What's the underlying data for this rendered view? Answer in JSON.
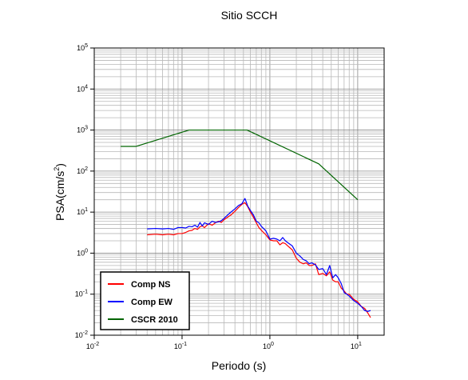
{
  "chart_data": {
    "type": "line",
    "title": "Sitio SCCH",
    "xlabel": "Periodo (s)",
    "ylabel_main": "PSA(cm/s",
    "ylabel_sup": "2",
    "ylabel_close": ")",
    "x_scale": "log",
    "y_scale": "log",
    "xlim": [
      0.01,
      20
    ],
    "ylim": [
      0.01,
      100000
    ],
    "grid": true,
    "legend_position": "bottom-left",
    "x_ticks": [
      {
        "base": "10",
        "exp": "-2",
        "value": 0.01
      },
      {
        "base": "10",
        "exp": "-1",
        "value": 0.1
      },
      {
        "base": "10",
        "exp": "0",
        "value": 1
      },
      {
        "base": "10",
        "exp": "1",
        "value": 10
      }
    ],
    "y_ticks": [
      {
        "base": "10",
        "exp": "-2",
        "value": 0.01
      },
      {
        "base": "10",
        "exp": "-1",
        "value": 0.1
      },
      {
        "base": "10",
        "exp": "0",
        "value": 1
      },
      {
        "base": "10",
        "exp": "1",
        "value": 10
      },
      {
        "base": "10",
        "exp": "2",
        "value": 100
      },
      {
        "base": "10",
        "exp": "3",
        "value": 1000
      },
      {
        "base": "10",
        "exp": "4",
        "value": 10000
      },
      {
        "base": "10",
        "exp": "5",
        "value": 100000
      }
    ],
    "series": [
      {
        "name": "Comp NS",
        "color": "#ff0000",
        "x": [
          0.04,
          0.05,
          0.06,
          0.07,
          0.08,
          0.09,
          0.1,
          0.11,
          0.12,
          0.13,
          0.14,
          0.15,
          0.16,
          0.17,
          0.18,
          0.2,
          0.22,
          0.24,
          0.26,
          0.28,
          0.3,
          0.33,
          0.36,
          0.4,
          0.44,
          0.48,
          0.52,
          0.56,
          0.6,
          0.65,
          0.7,
          0.75,
          0.8,
          0.9,
          1.0,
          1.1,
          1.2,
          1.3,
          1.4,
          1.5,
          1.6,
          1.8,
          2.0,
          2.2,
          2.4,
          2.6,
          2.8,
          3.0,
          3.3,
          3.6,
          4.0,
          4.4,
          4.8,
          5.2,
          5.6,
          6.0,
          6.5,
          7.0,
          7.5,
          8.0,
          9.0,
          10.0,
          11.0,
          12.0,
          13.0,
          14.0
        ],
        "values": [
          2.8,
          2.9,
          2.8,
          2.9,
          2.8,
          3.0,
          3.0,
          3.2,
          3.5,
          3.6,
          4.0,
          3.8,
          4.4,
          4.6,
          4.2,
          5.2,
          4.8,
          5.5,
          6.0,
          5.6,
          6.5,
          7.5,
          8.5,
          10.5,
          13.0,
          15.5,
          17.0,
          13.5,
          10.0,
          7.5,
          5.5,
          4.2,
          3.6,
          2.8,
          2.1,
          2.0,
          2.0,
          1.6,
          1.8,
          1.7,
          1.5,
          1.2,
          0.75,
          0.6,
          0.55,
          0.58,
          0.5,
          0.5,
          0.55,
          0.3,
          0.32,
          0.28,
          0.35,
          0.22,
          0.2,
          0.2,
          0.14,
          0.12,
          0.1,
          0.1,
          0.075,
          0.065,
          0.05,
          0.045,
          0.035,
          0.027
        ]
      },
      {
        "name": "Comp EW",
        "color": "#0000ff",
        "x": [
          0.04,
          0.05,
          0.06,
          0.07,
          0.08,
          0.09,
          0.1,
          0.11,
          0.12,
          0.13,
          0.14,
          0.15,
          0.16,
          0.17,
          0.18,
          0.2,
          0.22,
          0.24,
          0.26,
          0.28,
          0.3,
          0.33,
          0.36,
          0.4,
          0.44,
          0.48,
          0.52,
          0.56,
          0.6,
          0.65,
          0.7,
          0.75,
          0.8,
          0.9,
          1.0,
          1.1,
          1.2,
          1.3,
          1.4,
          1.5,
          1.6,
          1.8,
          2.0,
          2.2,
          2.4,
          2.6,
          2.8,
          3.0,
          3.3,
          3.6,
          4.0,
          4.4,
          4.8,
          5.2,
          5.6,
          6.0,
          6.5,
          7.0,
          7.5,
          8.0,
          9.0,
          10.0,
          11.0,
          12.0,
          13.0,
          14.0
        ],
        "values": [
          3.9,
          4.0,
          3.9,
          4.0,
          3.8,
          4.2,
          4.2,
          4.1,
          4.5,
          4.4,
          4.8,
          4.3,
          5.6,
          4.6,
          5.5,
          5.0,
          6.0,
          5.6,
          5.8,
          6.2,
          7.0,
          8.5,
          10.0,
          12.0,
          14.5,
          16.0,
          21.5,
          14.0,
          11.0,
          8.5,
          6.0,
          5.5,
          4.5,
          3.5,
          2.2,
          2.3,
          2.2,
          2.0,
          2.4,
          2.0,
          1.8,
          1.5,
          1.0,
          0.85,
          0.7,
          0.65,
          0.55,
          0.58,
          0.52,
          0.4,
          0.42,
          0.3,
          0.5,
          0.25,
          0.3,
          0.25,
          0.18,
          0.11,
          0.1,
          0.09,
          0.07,
          0.06,
          0.05,
          0.04,
          0.038,
          0.04
        ]
      },
      {
        "name": "CSCR 2010",
        "color": "#006400",
        "x": [
          0.02,
          0.03,
          0.12,
          0.5,
          0.55,
          3.6,
          10.0
        ],
        "values": [
          400,
          400,
          1000,
          1000,
          1000,
          150,
          20
        ]
      }
    ]
  }
}
